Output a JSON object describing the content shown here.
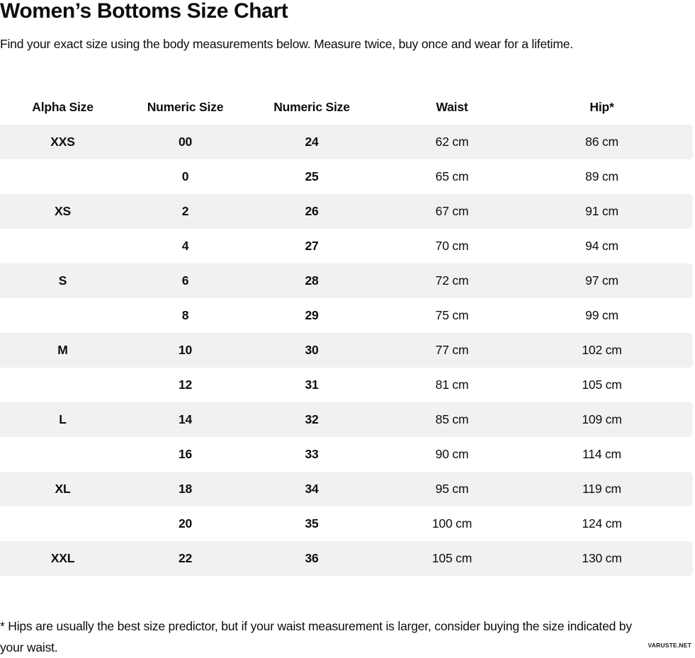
{
  "page": {
    "title": "Women’s Bottoms Size Chart",
    "subtitle": "Find your exact size using the body measurements below. Measure twice, buy once and wear for a lifetime.",
    "footnote": "* Hips are usually the best size predictor, but if your waist measurement is larger, consider buying the size indicated by your waist.",
    "watermark": "VARUSTE.NET"
  },
  "size_chart": {
    "columns": [
      "Alpha Size",
      "Numeric Size",
      "Numeric Size",
      "Waist",
      "Hip*"
    ],
    "rows": [
      [
        "XXS",
        "00",
        "24",
        "62 cm",
        "86 cm"
      ],
      [
        "",
        "0",
        "25",
        "65 cm",
        "89 cm"
      ],
      [
        "XS",
        "2",
        "26",
        "67 cm",
        "91 cm"
      ],
      [
        "",
        "4",
        "27",
        "70 cm",
        "94 cm"
      ],
      [
        "S",
        "6",
        "28",
        "72 cm",
        "97 cm"
      ],
      [
        "",
        "8",
        "29",
        "75 cm",
        "99 cm"
      ],
      [
        "M",
        "10",
        "30",
        "77 cm",
        "102 cm"
      ],
      [
        "",
        "12",
        "31",
        "81 cm",
        "105 cm"
      ],
      [
        "L",
        "14",
        "32",
        "85 cm",
        "109 cm"
      ],
      [
        "",
        "16",
        "33",
        "90 cm",
        "114 cm"
      ],
      [
        "XL",
        "18",
        "34",
        "95 cm",
        "119 cm"
      ],
      [
        "",
        "20",
        "35",
        "100 cm",
        "124 cm"
      ],
      [
        "XXL",
        "22",
        "36",
        "105 cm",
        "130 cm"
      ]
    ],
    "colors": {
      "stripe_background": "#f1f1f1",
      "row_background": "#ffffff",
      "text": "#0d0d0d"
    }
  }
}
